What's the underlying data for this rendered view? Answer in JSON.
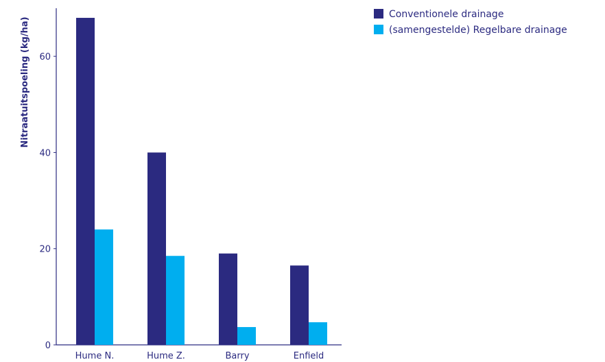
{
  "chart_data": {
    "type": "bar",
    "categories": [
      "Hume N.",
      "Hume Z.",
      "Barry",
      "Enfield"
    ],
    "series": [
      {
        "name": "Conventionele drainage",
        "values": [
          68,
          40,
          19,
          16.5
        ],
        "color": "#2b2a80"
      },
      {
        "name": "(samengestelde) Regelbare drainage",
        "values": [
          24,
          18.5,
          3.7,
          4.7
        ],
        "color": "#00aeef"
      }
    ],
    "title": "",
    "xlabel": "",
    "ylabel": "Nitraatuitspoeling (kg/ha)",
    "ylim": [
      0,
      70
    ],
    "yticks": [
      0,
      20,
      40,
      60
    ],
    "grid": false,
    "legend": "top-right",
    "axis_color": "#2b2a80"
  }
}
